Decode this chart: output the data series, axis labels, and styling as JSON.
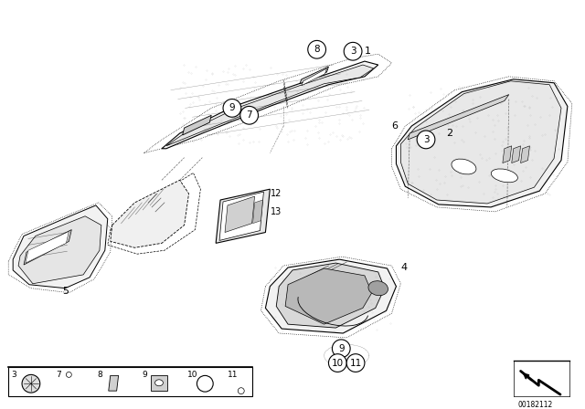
{
  "bg_color": "#ffffff",
  "line_color": "#000000",
  "diagram_number": "00182112",
  "figsize": [
    6.4,
    4.48
  ],
  "dpi": 100
}
